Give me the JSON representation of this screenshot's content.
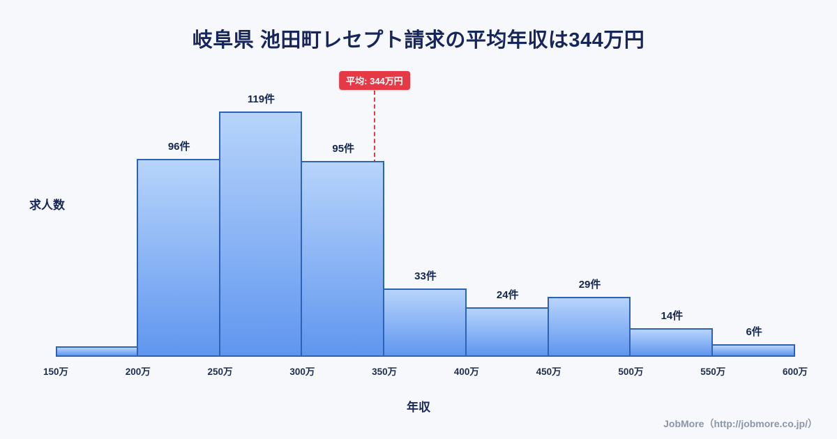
{
  "title": "岐阜県 池田町レセプト請求の平均年収は344万円",
  "footer": "JobMore（http://jobmore.co.jp/）",
  "chart_data": {
    "type": "bar",
    "subtype": "histogram",
    "title": "岐阜県 池田町レセプト請求の平均年収は344万円",
    "xlabel": "年収",
    "ylabel": "求人数",
    "x_range": [
      150,
      600
    ],
    "bin_width": 50,
    "x_tick_labels": [
      "150万",
      "200万",
      "250万",
      "300万",
      "350万",
      "400万",
      "450万",
      "500万",
      "550万",
      "600万"
    ],
    "values": [
      5,
      96,
      119,
      95,
      33,
      24,
      29,
      14,
      6
    ],
    "bar_labels": [
      "",
      "96件",
      "119件",
      "95件",
      "33件",
      "24件",
      "29件",
      "14件",
      "6件"
    ],
    "average": {
      "value": 344,
      "label": "平均: 344万円"
    },
    "grid": false,
    "legend": false,
    "colors": {
      "background": "#f6f8fc",
      "title_text": "#16265a",
      "bar_fill_top": "#b7d4fb",
      "bar_fill_bottom": "#6096ef",
      "bar_border": "#2e62b5",
      "average_line": "#e63946"
    }
  }
}
